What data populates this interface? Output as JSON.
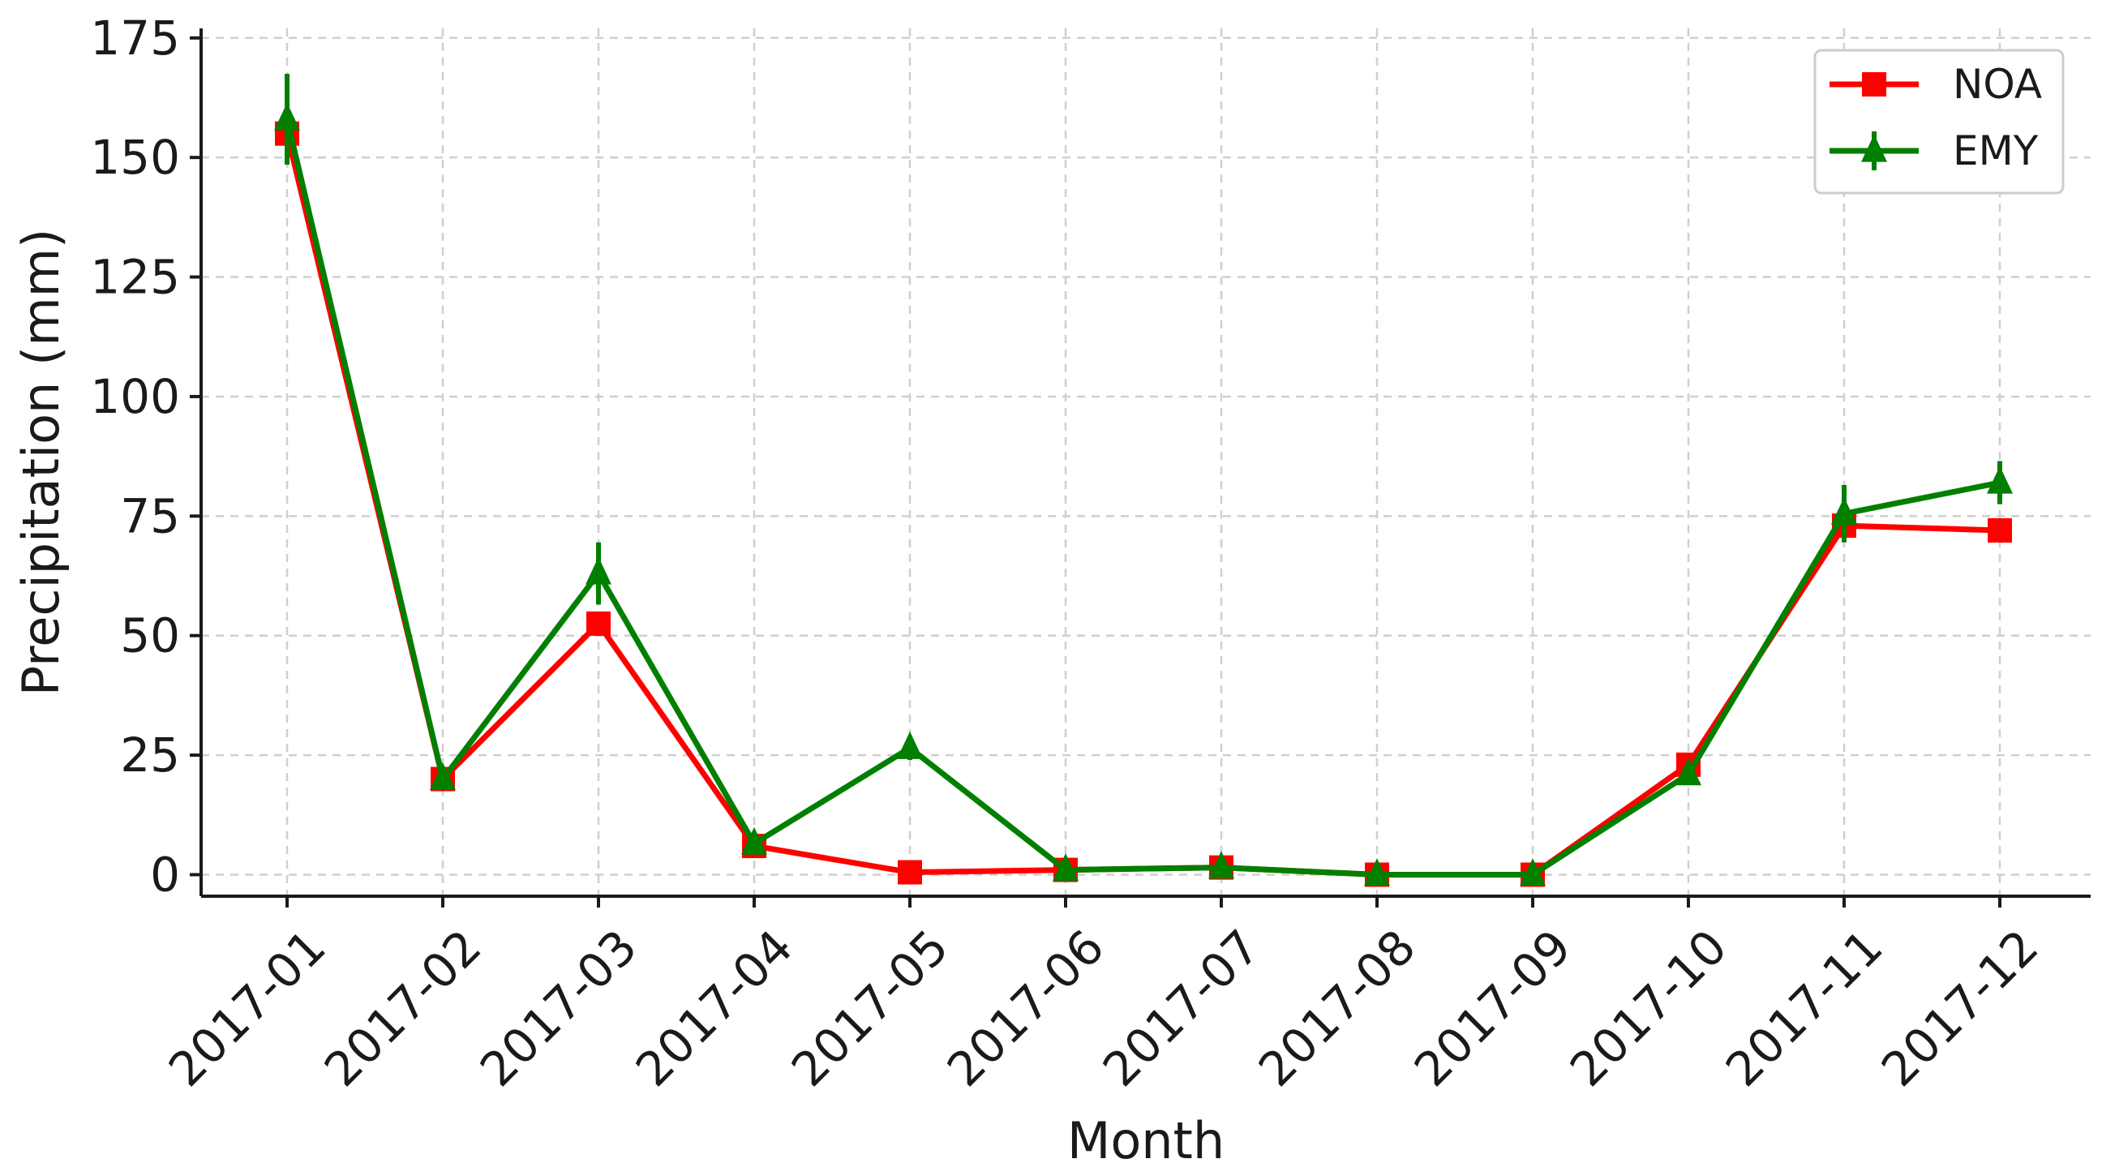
{
  "chart_data": {
    "type": "line",
    "categories": [
      "2017-01",
      "2017-02",
      "2017-03",
      "2017-04",
      "2017-05",
      "2017-06",
      "2017-07",
      "2017-08",
      "2017-09",
      "2017-10",
      "2017-11",
      "2017-12"
    ],
    "xlabel": "Month",
    "ylabel": "Precipitation (mm)",
    "ylim": [
      -4.5,
      177
    ],
    "yticks": [
      0,
      25,
      50,
      75,
      100,
      125,
      150,
      175
    ],
    "grid": true,
    "legend_position": "top-right",
    "series": [
      {
        "name": "NOA",
        "color": "#ff0000",
        "marker": "square",
        "values": [
          155,
          20,
          52.5,
          6,
          0.5,
          1,
          1.5,
          0,
          0,
          23,
          73,
          72
        ]
      },
      {
        "name": "EMY",
        "color": "#007f00",
        "marker": "triangle",
        "values": [
          158,
          20,
          63,
          6.5,
          26.5,
          1,
          1.5,
          0,
          0,
          21,
          75.5,
          82
        ],
        "error": [
          9.5,
          1.5,
          6.5,
          1,
          2.5,
          0.5,
          0.5,
          0.2,
          0.2,
          2,
          6,
          4.5
        ]
      }
    ]
  }
}
